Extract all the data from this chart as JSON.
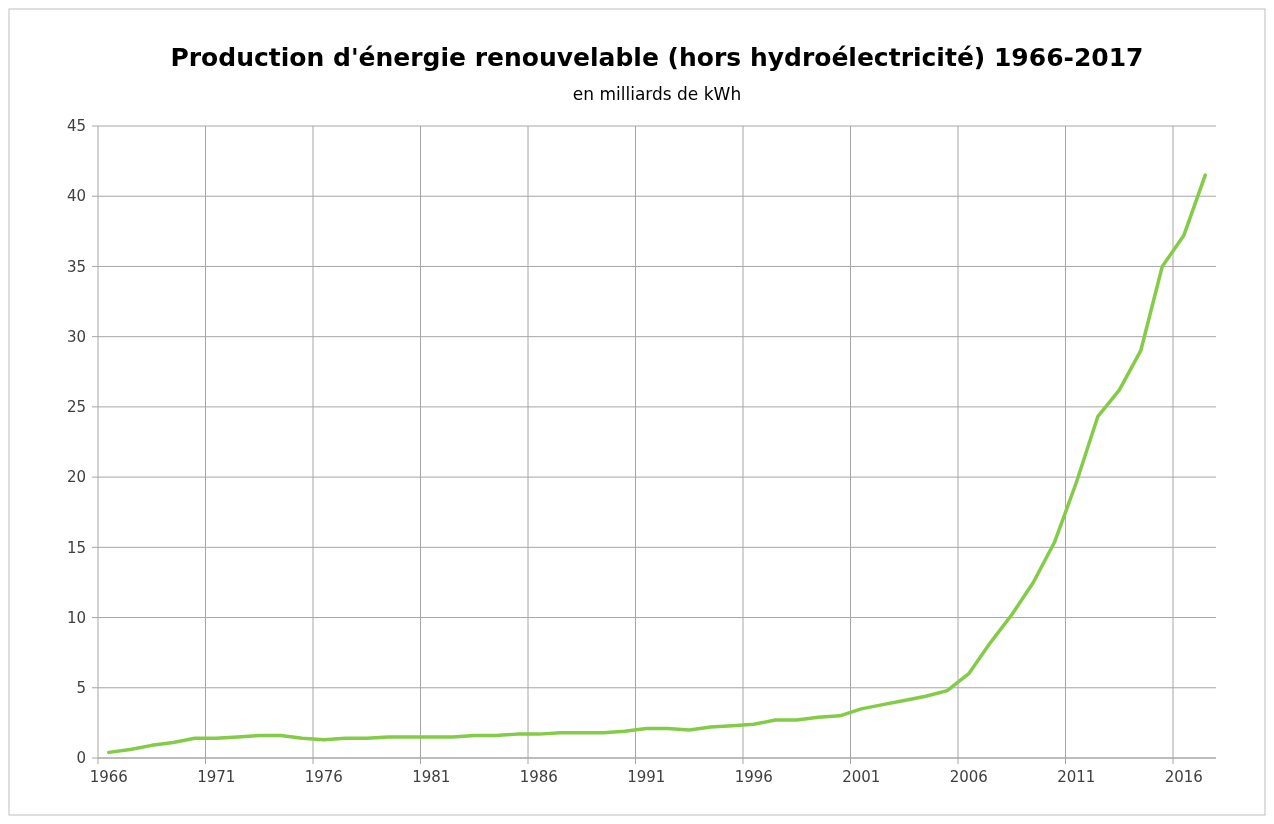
{
  "chart_data": {
    "type": "line",
    "title": "Production d'énergie renouvelable (hors hydroélectricité) 1966-2017",
    "subtitle": "en milliards de kWh",
    "categories": [
      "1966",
      null,
      null,
      null,
      null,
      "1971",
      null,
      null,
      null,
      null,
      "1976",
      null,
      null,
      null,
      null,
      "1981",
      null,
      null,
      null,
      null,
      "1986",
      null,
      null,
      null,
      null,
      "1991",
      null,
      null,
      null,
      null,
      "1996",
      null,
      null,
      null,
      null,
      "2001",
      null,
      null,
      null,
      null,
      "2006",
      null,
      null,
      null,
      null,
      "2011",
      null,
      null,
      null,
      null,
      "2016",
      null
    ],
    "series": [
      {
        "color": "#84cc47",
        "values": [
          0.4,
          0.6,
          0.9,
          1.1,
          1.4,
          1.4,
          1.5,
          1.6,
          1.6,
          1.4,
          1.3,
          1.4,
          1.4,
          1.5,
          1.5,
          1.5,
          1.5,
          1.6,
          1.6,
          1.7,
          1.7,
          1.8,
          1.8,
          1.8,
          1.9,
          2.1,
          2.1,
          2.0,
          2.2,
          2.3,
          2.4,
          2.7,
          2.7,
          2.9,
          3.0,
          3.5,
          3.8,
          4.1,
          4.4,
          4.8,
          6.0,
          8.2,
          10.2,
          12.5,
          15.4,
          19.6,
          24.3,
          26.2,
          29.0,
          35.0,
          37.2,
          41.5
        ]
      }
    ],
    "ylim": [
      0,
      45
    ],
    "yticks": [
      0,
      5,
      10,
      15,
      20,
      25,
      30,
      35,
      40,
      45
    ],
    "grid": true,
    "marker": "none",
    "line_style": "solid"
  }
}
